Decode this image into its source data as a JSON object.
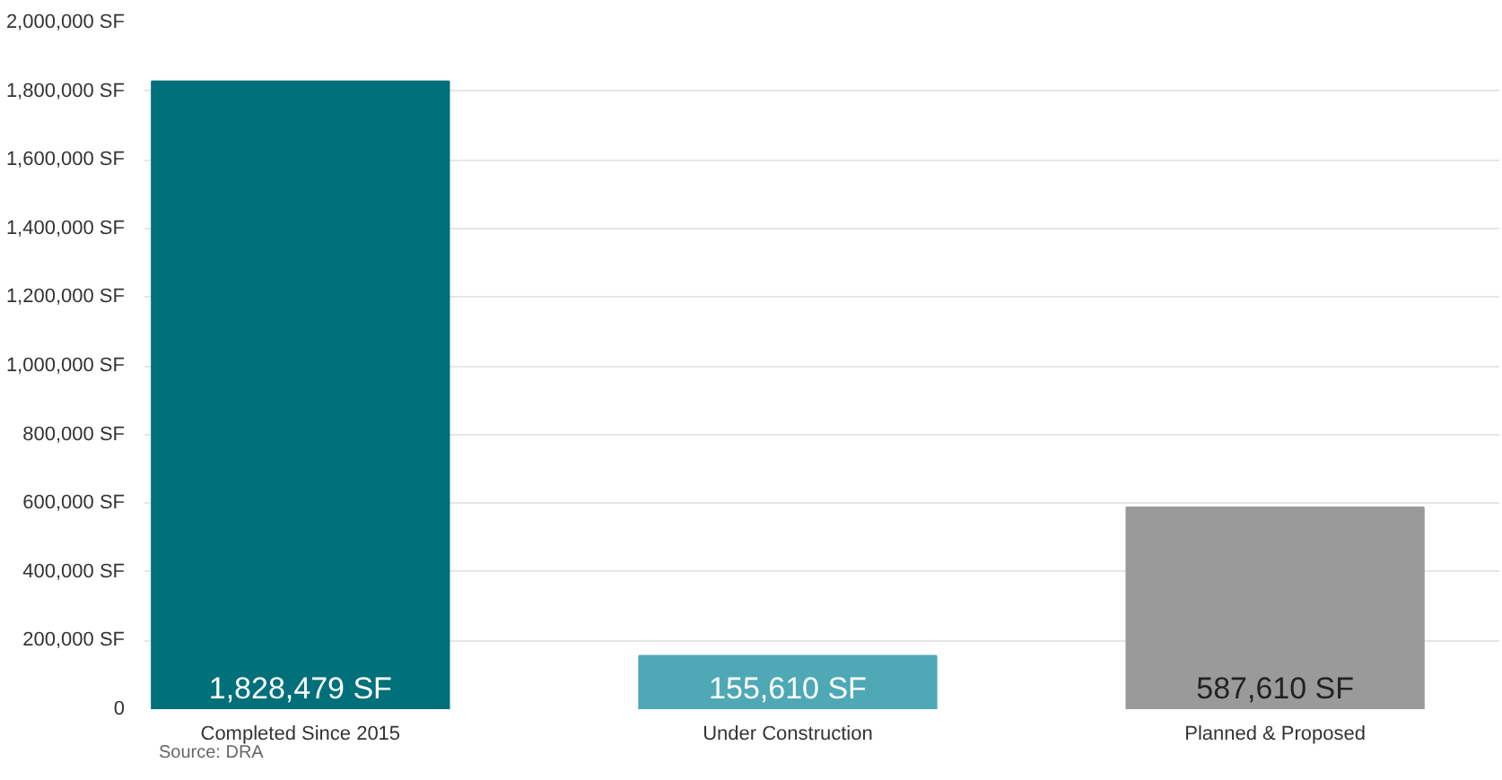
{
  "chart_data": {
    "type": "bar",
    "categories": [
      "Completed Since 2015",
      "Under Construction",
      "Planned & Proposed"
    ],
    "values": [
      1828479,
      155610,
      587610
    ],
    "colors": [
      "#00707a",
      "#4ea8b6",
      "#9a9a9a"
    ],
    "value_labels": [
      "1,828,479 SF",
      "155,610 SF",
      "587,610 SF"
    ],
    "ylim": [
      0,
      2000000
    ],
    "yticks": [
      0,
      {
        "value": 200000,
        "label": "200,000 SF"
      },
      {
        "value": 400000,
        "label": "400,000 SF"
      },
      {
        "value": 600000,
        "label": "600,000 SF"
      },
      {
        "value": 800000,
        "label": "800,000 SF"
      },
      {
        "value": 1000000,
        "label": "1,000,000 SF"
      },
      {
        "value": 1200000,
        "label": "1,200,000 SF"
      },
      {
        "value": 1400000,
        "label": "1,400,000 SF"
      },
      {
        "value": 1600000,
        "label": "1,600,000 SF"
      },
      {
        "value": 1800000,
        "label": "1,800,000 SF"
      },
      {
        "value": 2000000,
        "label": "2,000,000 SF"
      }
    ],
    "grid": "y",
    "annotations": [
      "Source: DRA"
    ]
  }
}
